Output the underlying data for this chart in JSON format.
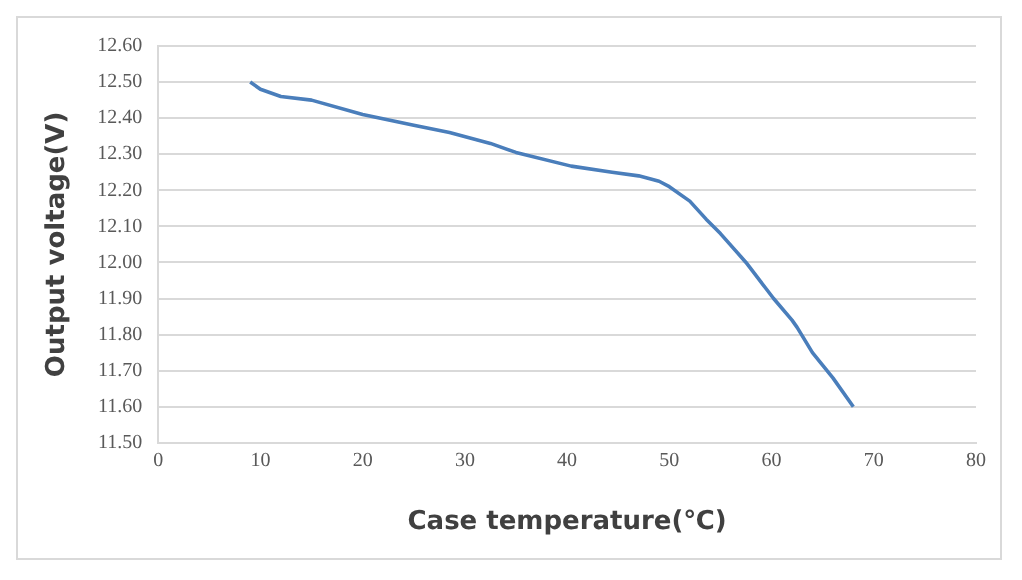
{
  "chart_data": {
    "type": "line",
    "xlabel": "Case temperature(℃)",
    "ylabel": "Output voltage(V)",
    "series": [
      {
        "color": "#4a7ebb",
        "x": [
          9,
          10,
          12,
          15,
          20,
          25,
          28.5,
          32.5,
          35,
          40.4,
          44.4,
          47,
          49,
          50,
          52,
          53.6,
          55,
          57.5,
          60.2,
          62,
          62.5,
          64,
          66,
          68
        ],
        "values": [
          12.5,
          12.48,
          12.46,
          12.45,
          12.41,
          12.38,
          12.36,
          12.33,
          12.305,
          12.267,
          12.25,
          12.24,
          12.225,
          12.21,
          12.17,
          12.12,
          12.08,
          12.0,
          11.9,
          11.84,
          11.82,
          11.75,
          11.68,
          11.6
        ]
      }
    ],
    "xlim": [
      0,
      80
    ],
    "xticks": [
      0,
      10,
      20,
      30,
      40,
      50,
      60,
      70,
      80
    ],
    "ylim": [
      11.5,
      12.6
    ],
    "yticks": [
      {
        "value": 11.5,
        "label": "11.50"
      },
      {
        "value": 11.6,
        "label": "11.60"
      },
      {
        "value": 11.7,
        "label": "11.70"
      },
      {
        "value": 11.8,
        "label": "11.80"
      },
      {
        "value": 11.9,
        "label": "11.90"
      },
      {
        "value": 12,
        "label": "12.00"
      },
      {
        "value": 12.1,
        "label": "12.10"
      },
      {
        "value": 12.2,
        "label": "12.20"
      },
      {
        "value": 12.3,
        "label": "12.30"
      },
      {
        "value": 12.4,
        "label": "12.40"
      },
      {
        "value": 12.5,
        "label": "12.50"
      },
      {
        "value": 12.6,
        "label": "12.60"
      }
    ],
    "grid": "y",
    "marker": "none",
    "line_style": "solid",
    "legend": false
  }
}
